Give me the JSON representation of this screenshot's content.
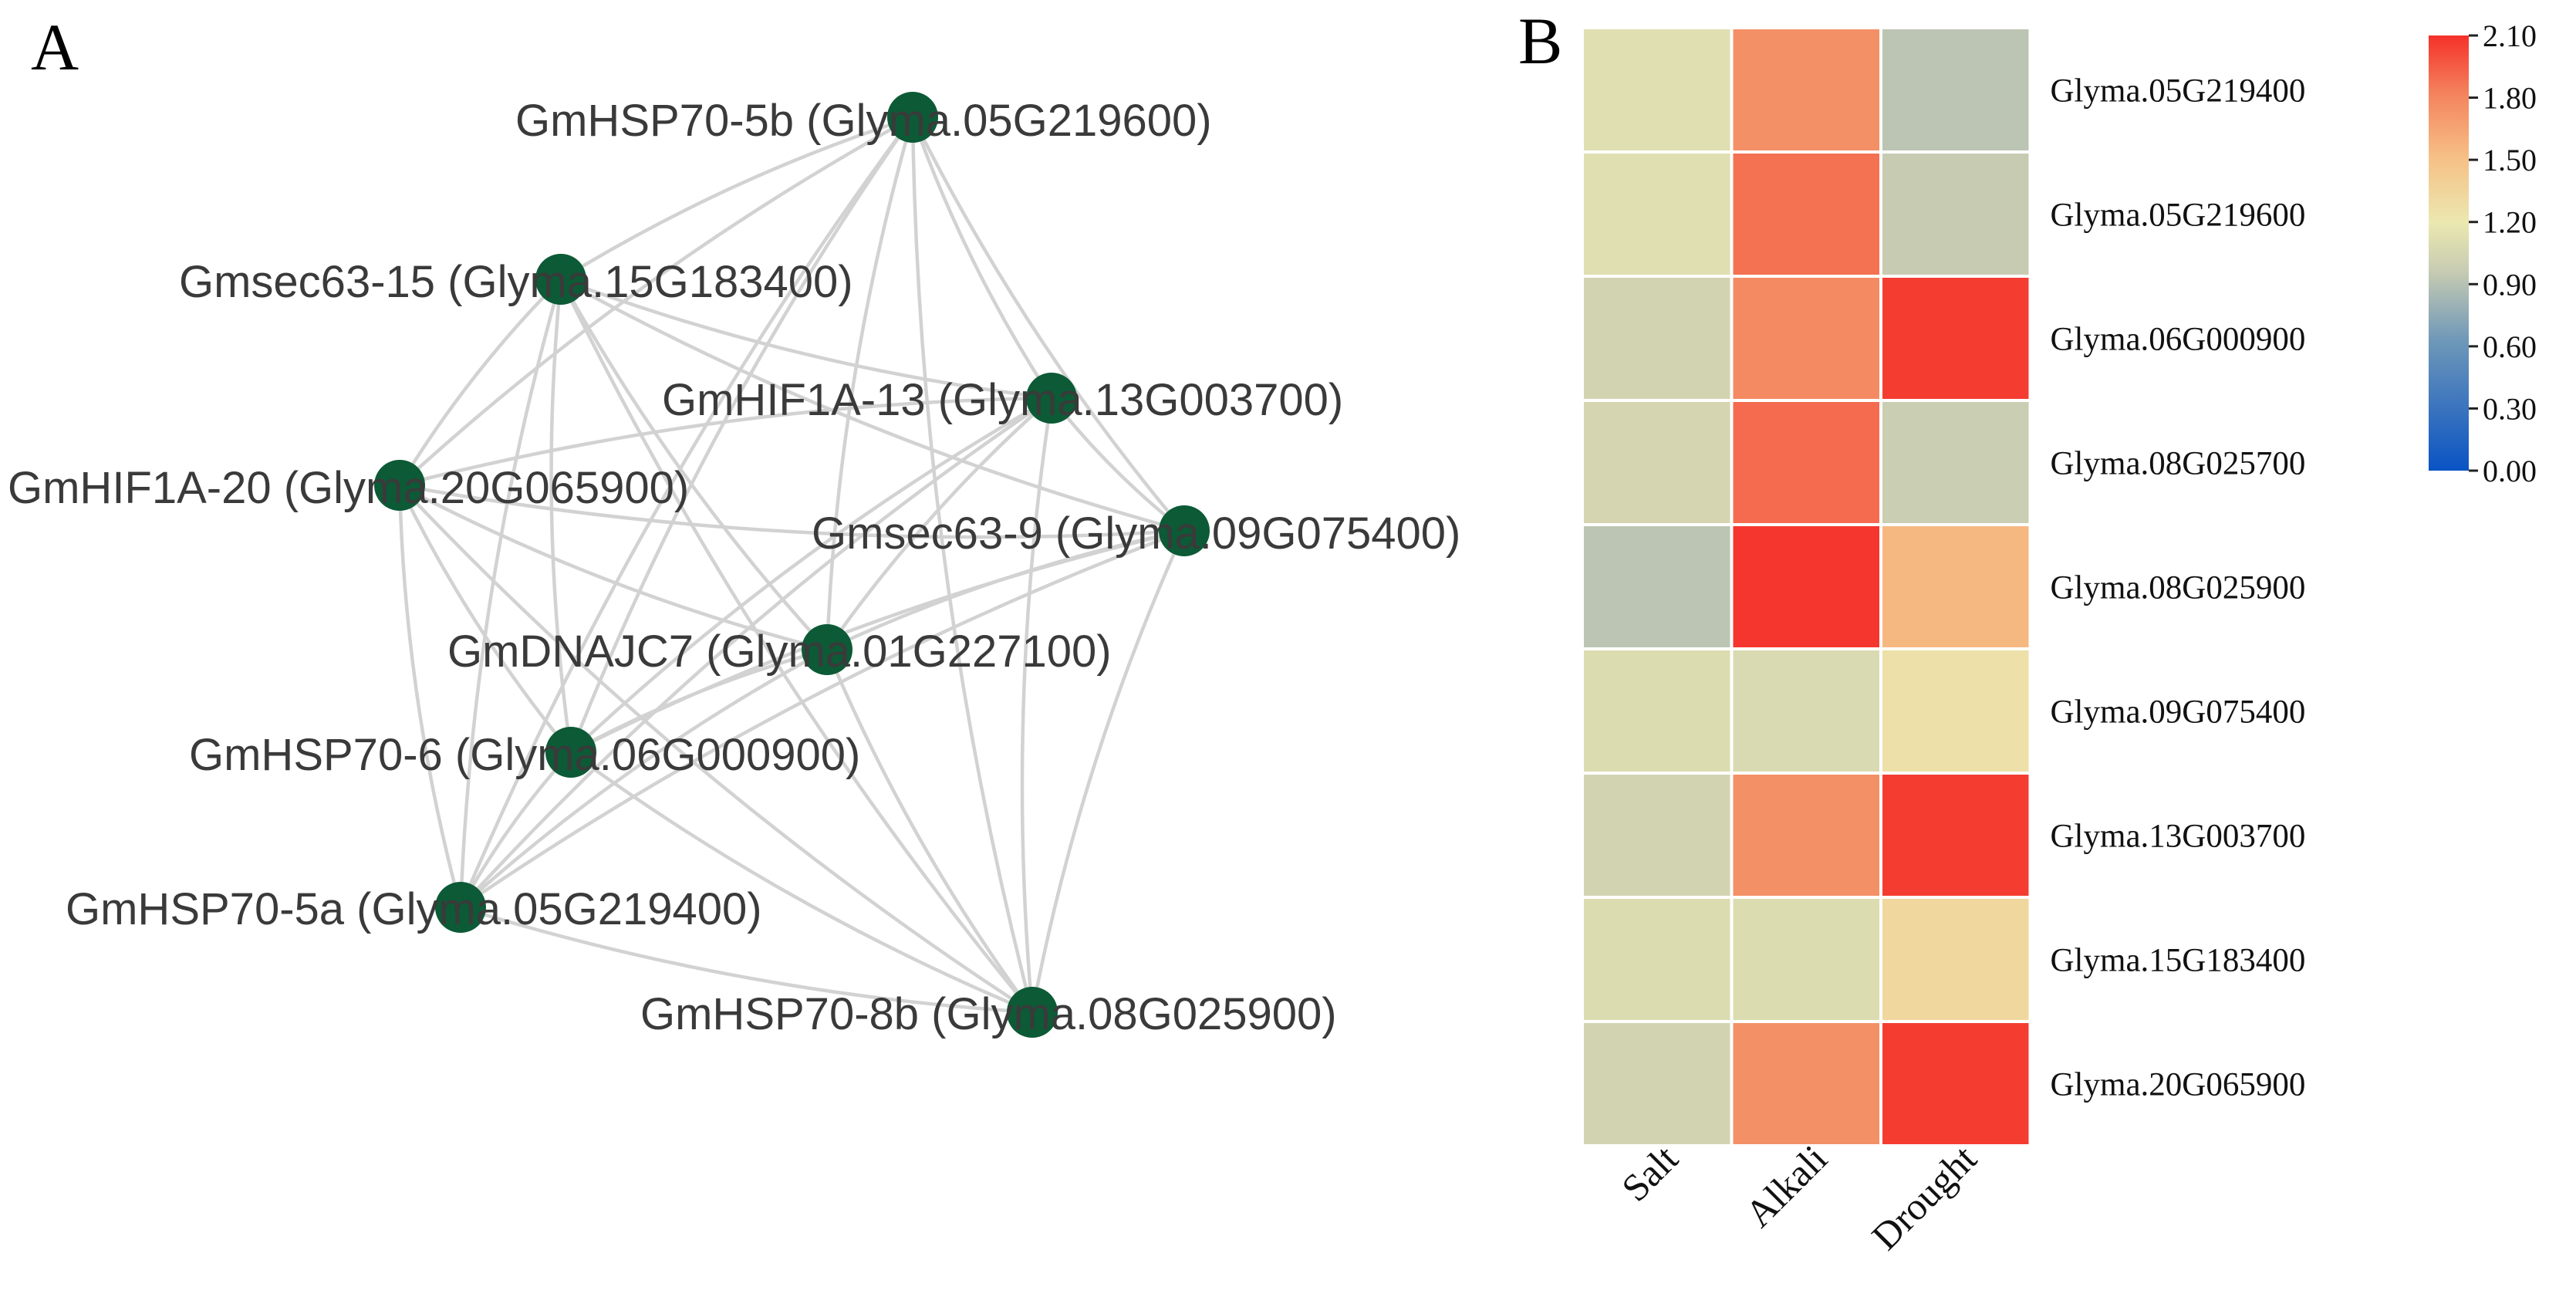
{
  "panels": {
    "a": "A",
    "b": "B"
  },
  "network": {
    "nodes": [
      {
        "id": "n1",
        "label": "GmHSP70-5b (Glyma.05G219600)"
      },
      {
        "id": "n2",
        "label": "Gmsec63-15 (Glyma.15G183400)"
      },
      {
        "id": "n3",
        "label": "GmHIF1A-13 (Glyma.13G003700)"
      },
      {
        "id": "n4",
        "label": "GmHIF1A-20 (Glyma.20G065900)"
      },
      {
        "id": "n5",
        "label": "Gmsec63-9 (Glyma.09G075400)"
      },
      {
        "id": "n6",
        "label": "GmDNAJC7 (Glyma.01G227100)"
      },
      {
        "id": "n7",
        "label": "GmHSP70-6 (Glyma.06G000900)"
      },
      {
        "id": "n8",
        "label": "GmHSP70-5a (Glyma.05G219400)"
      },
      {
        "id": "n9",
        "label": "GmHSP70-8b (Glyma.08G025900)"
      }
    ]
  },
  "chart_data": {
    "type": "heatmap",
    "rows": [
      "Glyma.05G219400",
      "Glyma.05G219600",
      "Glyma.06G000900",
      "Glyma.08G025700",
      "Glyma.08G025900",
      "Glyma.09G075400",
      "Glyma.13G003700",
      "Glyma.15G183400",
      "Glyma.20G065900"
    ],
    "columns": [
      "Salt",
      "Alkali",
      "Drought"
    ],
    "values": [
      [
        1.12,
        1.75,
        0.92
      ],
      [
        1.12,
        1.88,
        0.96
      ],
      [
        1.03,
        1.78,
        2.06
      ],
      [
        1.05,
        1.9,
        0.98
      ],
      [
        0.92,
        2.08,
        1.55
      ],
      [
        1.1,
        1.08,
        1.25
      ],
      [
        1.03,
        1.75,
        2.06
      ],
      [
        1.1,
        1.1,
        1.33
      ],
      [
        1.03,
        1.75,
        2.06
      ]
    ],
    "colorbar": {
      "min": 0.0,
      "max": 2.1,
      "ticks": [
        "2.10",
        "1.80",
        "1.50",
        "1.20",
        "0.90",
        "0.60",
        "0.30",
        "0.00"
      ]
    },
    "colors": {
      "stops": [
        "#0a53c4",
        "#8fa7b3",
        "#ebe8b0",
        "#f59a70",
        "#f5302a"
      ]
    }
  }
}
